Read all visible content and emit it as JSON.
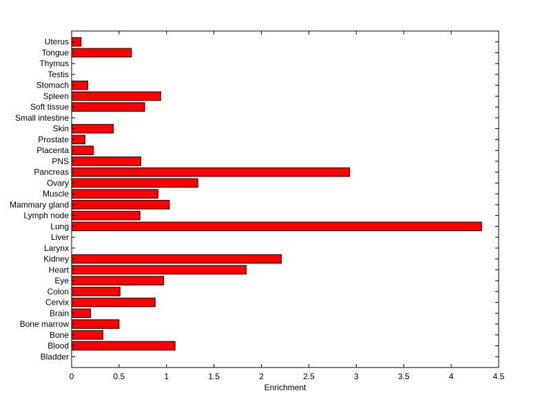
{
  "chart_data": {
    "type": "bar",
    "orientation": "horizontal",
    "categories": [
      "Bladder",
      "Blood",
      "Bone",
      "Bone marrow",
      "Brain",
      "Cervix",
      "Colon",
      "Eye",
      "Heart",
      "Kidney",
      "Larynx",
      "Liver",
      "Lung",
      "Lymph node",
      "Mammary gland",
      "Muscle",
      "Ovary",
      "Pancreas",
      "PNS",
      "Placenta",
      "Prostate",
      "Skin",
      "Small intestine",
      "Soft tissue",
      "Spleen",
      "Stomach",
      "Testis",
      "Thymus",
      "Tongue",
      "Uterus"
    ],
    "values": [
      0,
      1.09,
      0.33,
      0.5,
      0.2,
      0.88,
      0.51,
      0.97,
      1.84,
      2.21,
      0,
      0,
      4.32,
      0.72,
      1.03,
      0.91,
      1.33,
      2.93,
      0.73,
      0.23,
      0.14,
      0.44,
      0,
      0.77,
      0.94,
      0.17,
      0,
      0,
      0.63,
      0.1
    ],
    "xlabel": "Enrichment",
    "ylabel": "",
    "title": "",
    "xlim": [
      0,
      4.5
    ],
    "xticks": [
      "0",
      "0.5",
      "1",
      "1.5",
      "2",
      "2.5",
      "3",
      "3.5",
      "4",
      "4.5"
    ],
    "grid": false,
    "legend": "none",
    "colors": {
      "bar_fill": "#ff0000",
      "bar_stroke": "#000000",
      "axes": "#000000",
      "background": "#ffffff"
    }
  }
}
